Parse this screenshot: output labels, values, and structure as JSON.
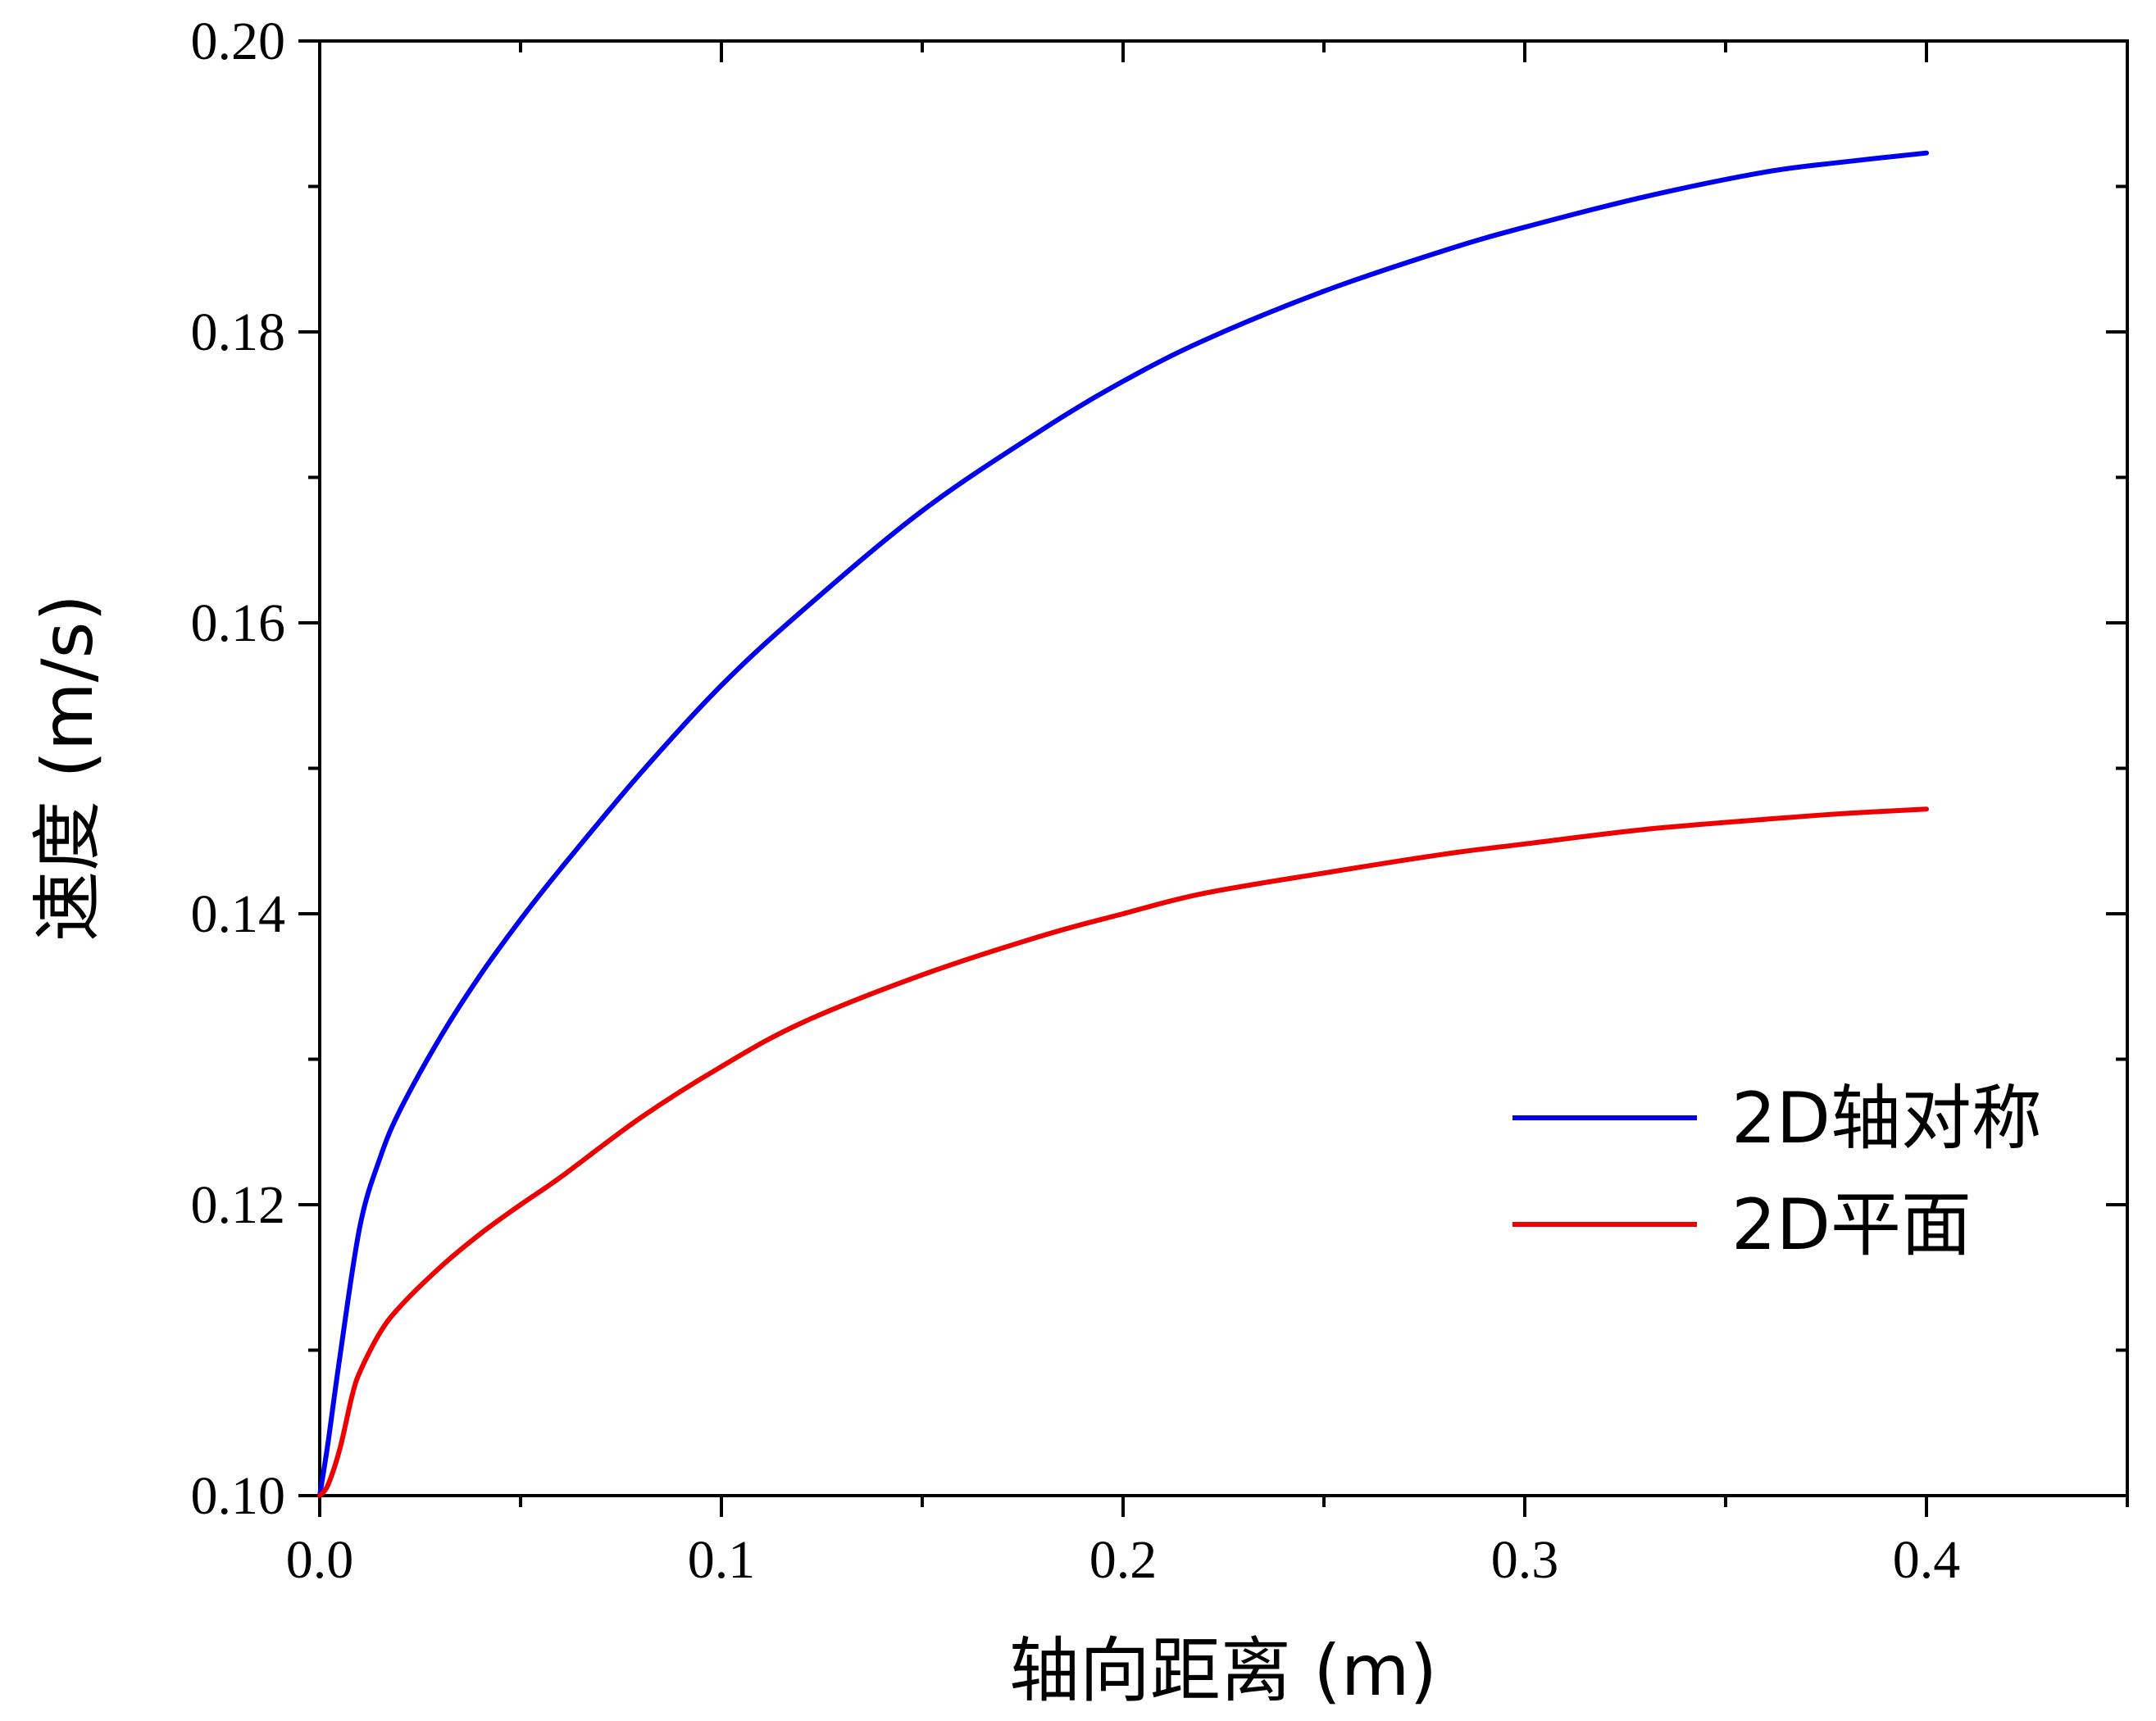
{
  "chart_data": {
    "type": "line",
    "title": "",
    "xlabel": "轴向距离 (m)",
    "ylabel": "速度 (m/s)",
    "xlim": [
      0.0,
      0.45
    ],
    "ylim": [
      0.1,
      0.2
    ],
    "xticks": [
      0.0,
      0.1,
      0.2,
      0.3,
      0.4
    ],
    "xtick_labels": [
      "0.0",
      "0.1",
      "0.2",
      "0.3",
      "0.4"
    ],
    "yticks": [
      0.1,
      0.12,
      0.14,
      0.16,
      0.18,
      0.2
    ],
    "ytick_labels": [
      "0.10",
      "0.12",
      "0.14",
      "0.16",
      "0.18",
      "0.20"
    ],
    "grid": false,
    "legend_position": "right",
    "series": [
      {
        "name": "2D轴对称",
        "color": "#0000ee",
        "x": [
          0.0,
          0.002,
          0.005,
          0.01,
          0.015,
          0.02,
          0.03,
          0.04,
          0.05,
          0.06,
          0.08,
          0.1,
          0.12,
          0.15,
          0.18,
          0.2,
          0.22,
          0.25,
          0.28,
          0.3,
          0.33,
          0.36,
          0.38,
          0.4
        ],
        "y": [
          0.1,
          0.1035,
          0.1095,
          0.1185,
          0.1232,
          0.1265,
          0.1315,
          0.1358,
          0.1396,
          0.1431,
          0.1497,
          0.1557,
          0.1608,
          0.1677,
          0.1733,
          0.1766,
          0.1794,
          0.1828,
          0.1856,
          0.1872,
          0.1893,
          0.191,
          0.1917,
          0.1923
        ]
      },
      {
        "name": "2D平面",
        "color": "#ee0000",
        "x": [
          0.0,
          0.002,
          0.005,
          0.008,
          0.01,
          0.015,
          0.02,
          0.03,
          0.04,
          0.05,
          0.06,
          0.08,
          0.1,
          0.12,
          0.15,
          0.18,
          0.2,
          0.22,
          0.25,
          0.28,
          0.3,
          0.33,
          0.36,
          0.38,
          0.4
        ],
        "y": [
          0.1,
          0.1007,
          0.1032,
          0.1068,
          0.1085,
          0.1112,
          0.113,
          0.1157,
          0.118,
          0.12,
          0.1219,
          0.126,
          0.1295,
          0.1325,
          0.1358,
          0.1385,
          0.14,
          0.1414,
          0.1428,
          0.1441,
          0.1448,
          0.1458,
          0.1465,
          0.1469,
          0.1472
        ]
      }
    ]
  }
}
